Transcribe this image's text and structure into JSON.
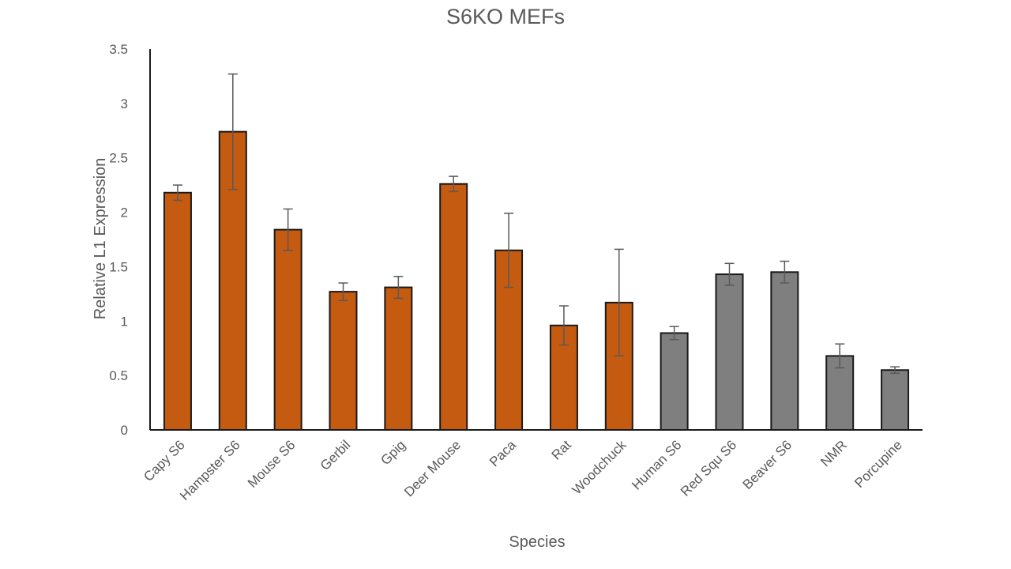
{
  "chart_data": {
    "type": "bar",
    "title": "S6KO MEFs",
    "xlabel": "Species",
    "ylabel": "Relative L1 Expression",
    "ylim": [
      0,
      3.5
    ],
    "yticks": [
      0,
      0.5,
      1,
      1.5,
      2,
      2.5,
      3,
      3.5
    ],
    "ytick_labels": [
      "0",
      "0.5",
      "1",
      "1.5",
      "2",
      "2.5",
      "3",
      "3.5"
    ],
    "grid": false,
    "categories": [
      "Capy S6",
      "Hampster S6",
      "Mouse S6",
      "Gerbil",
      "Gpig",
      "Deer Mouse",
      "Paca",
      "Rat",
      "Woodchuck",
      "Human S6",
      "Red Squ S6",
      "Beaver S6",
      "NMR",
      "Porcupine"
    ],
    "values": [
      2.18,
      2.74,
      1.84,
      1.27,
      1.31,
      2.26,
      1.65,
      0.96,
      1.17,
      0.89,
      1.43,
      1.45,
      0.68,
      0.55
    ],
    "errors": [
      0.07,
      0.53,
      0.19,
      0.08,
      0.1,
      0.07,
      0.34,
      0.18,
      0.49,
      0.06,
      0.1,
      0.1,
      0.11,
      0.03
    ],
    "bar_colors": [
      "#c55a11",
      "#c55a11",
      "#c55a11",
      "#c55a11",
      "#c55a11",
      "#c55a11",
      "#c55a11",
      "#c55a11",
      "#c55a11",
      "#7f7f7f",
      "#7f7f7f",
      "#7f7f7f",
      "#7f7f7f",
      "#7f7f7f"
    ],
    "bar_edge_color": "#1a1a1a",
    "error_bar_color": "#595959",
    "axis_color": "#1a1a1a"
  }
}
